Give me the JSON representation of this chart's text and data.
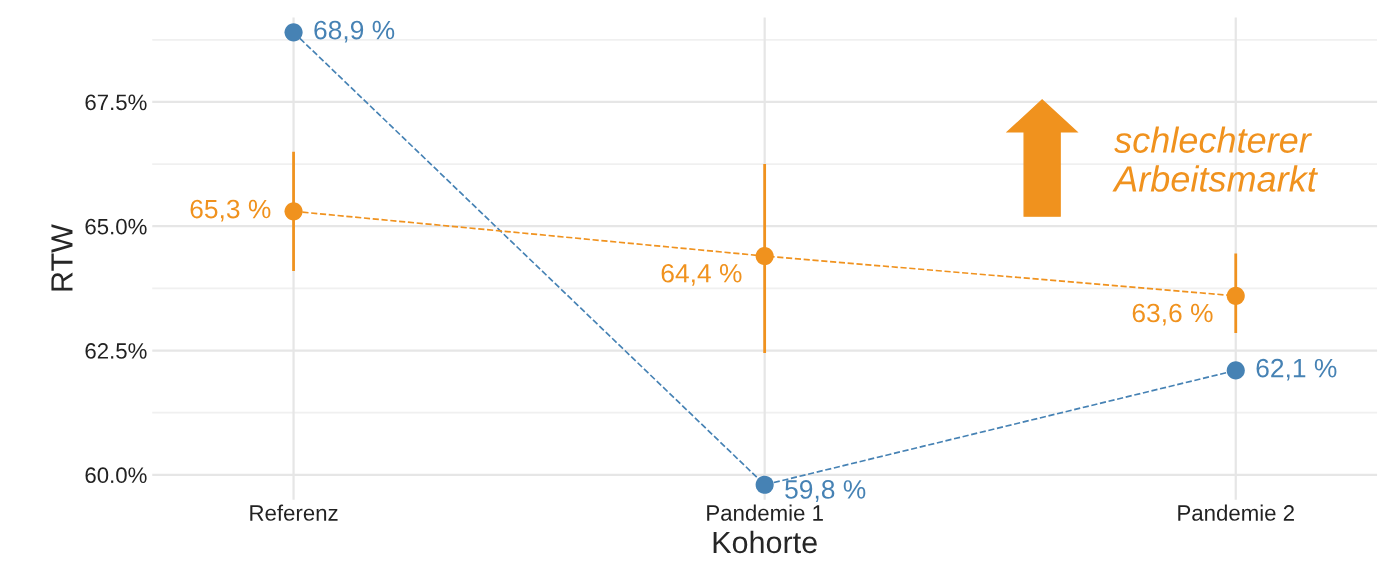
{
  "chart_data": {
    "type": "line",
    "xlabel": "Kohorte",
    "ylabel": "RTW",
    "categories": [
      "Referenz",
      "Pandemie 1",
      "Pandemie 2"
    ],
    "series": [
      {
        "color": "#4682b4",
        "values": [
          68.9,
          59.8,
          62.1
        ],
        "value_labels": [
          "68,9 %",
          "59,8 %",
          "62,1 %"
        ]
      },
      {
        "color": "#f0921e",
        "values": [
          65.3,
          64.4,
          63.6
        ],
        "value_labels": [
          "65,3 %",
          "64,4 %",
          "63,6 %"
        ],
        "errors": [
          [
            64.1,
            66.5
          ],
          [
            62.45,
            66.25
          ],
          [
            62.85,
            64.45
          ]
        ]
      }
    ],
    "ylim": [
      59.5,
      69.2
    ],
    "yticks": [
      {
        "value": 60.0,
        "label": "60.0%"
      },
      {
        "value": 62.5,
        "label": "62.5%"
      },
      {
        "value": 65.0,
        "label": "65.0%"
      },
      {
        "value": 67.5,
        "label": "67.5%"
      }
    ],
    "marker": "circle",
    "line_style": "dashed",
    "grid": true,
    "legend": false,
    "annotations": [
      "schlechterer\nArbeitsmarkt"
    ]
  }
}
